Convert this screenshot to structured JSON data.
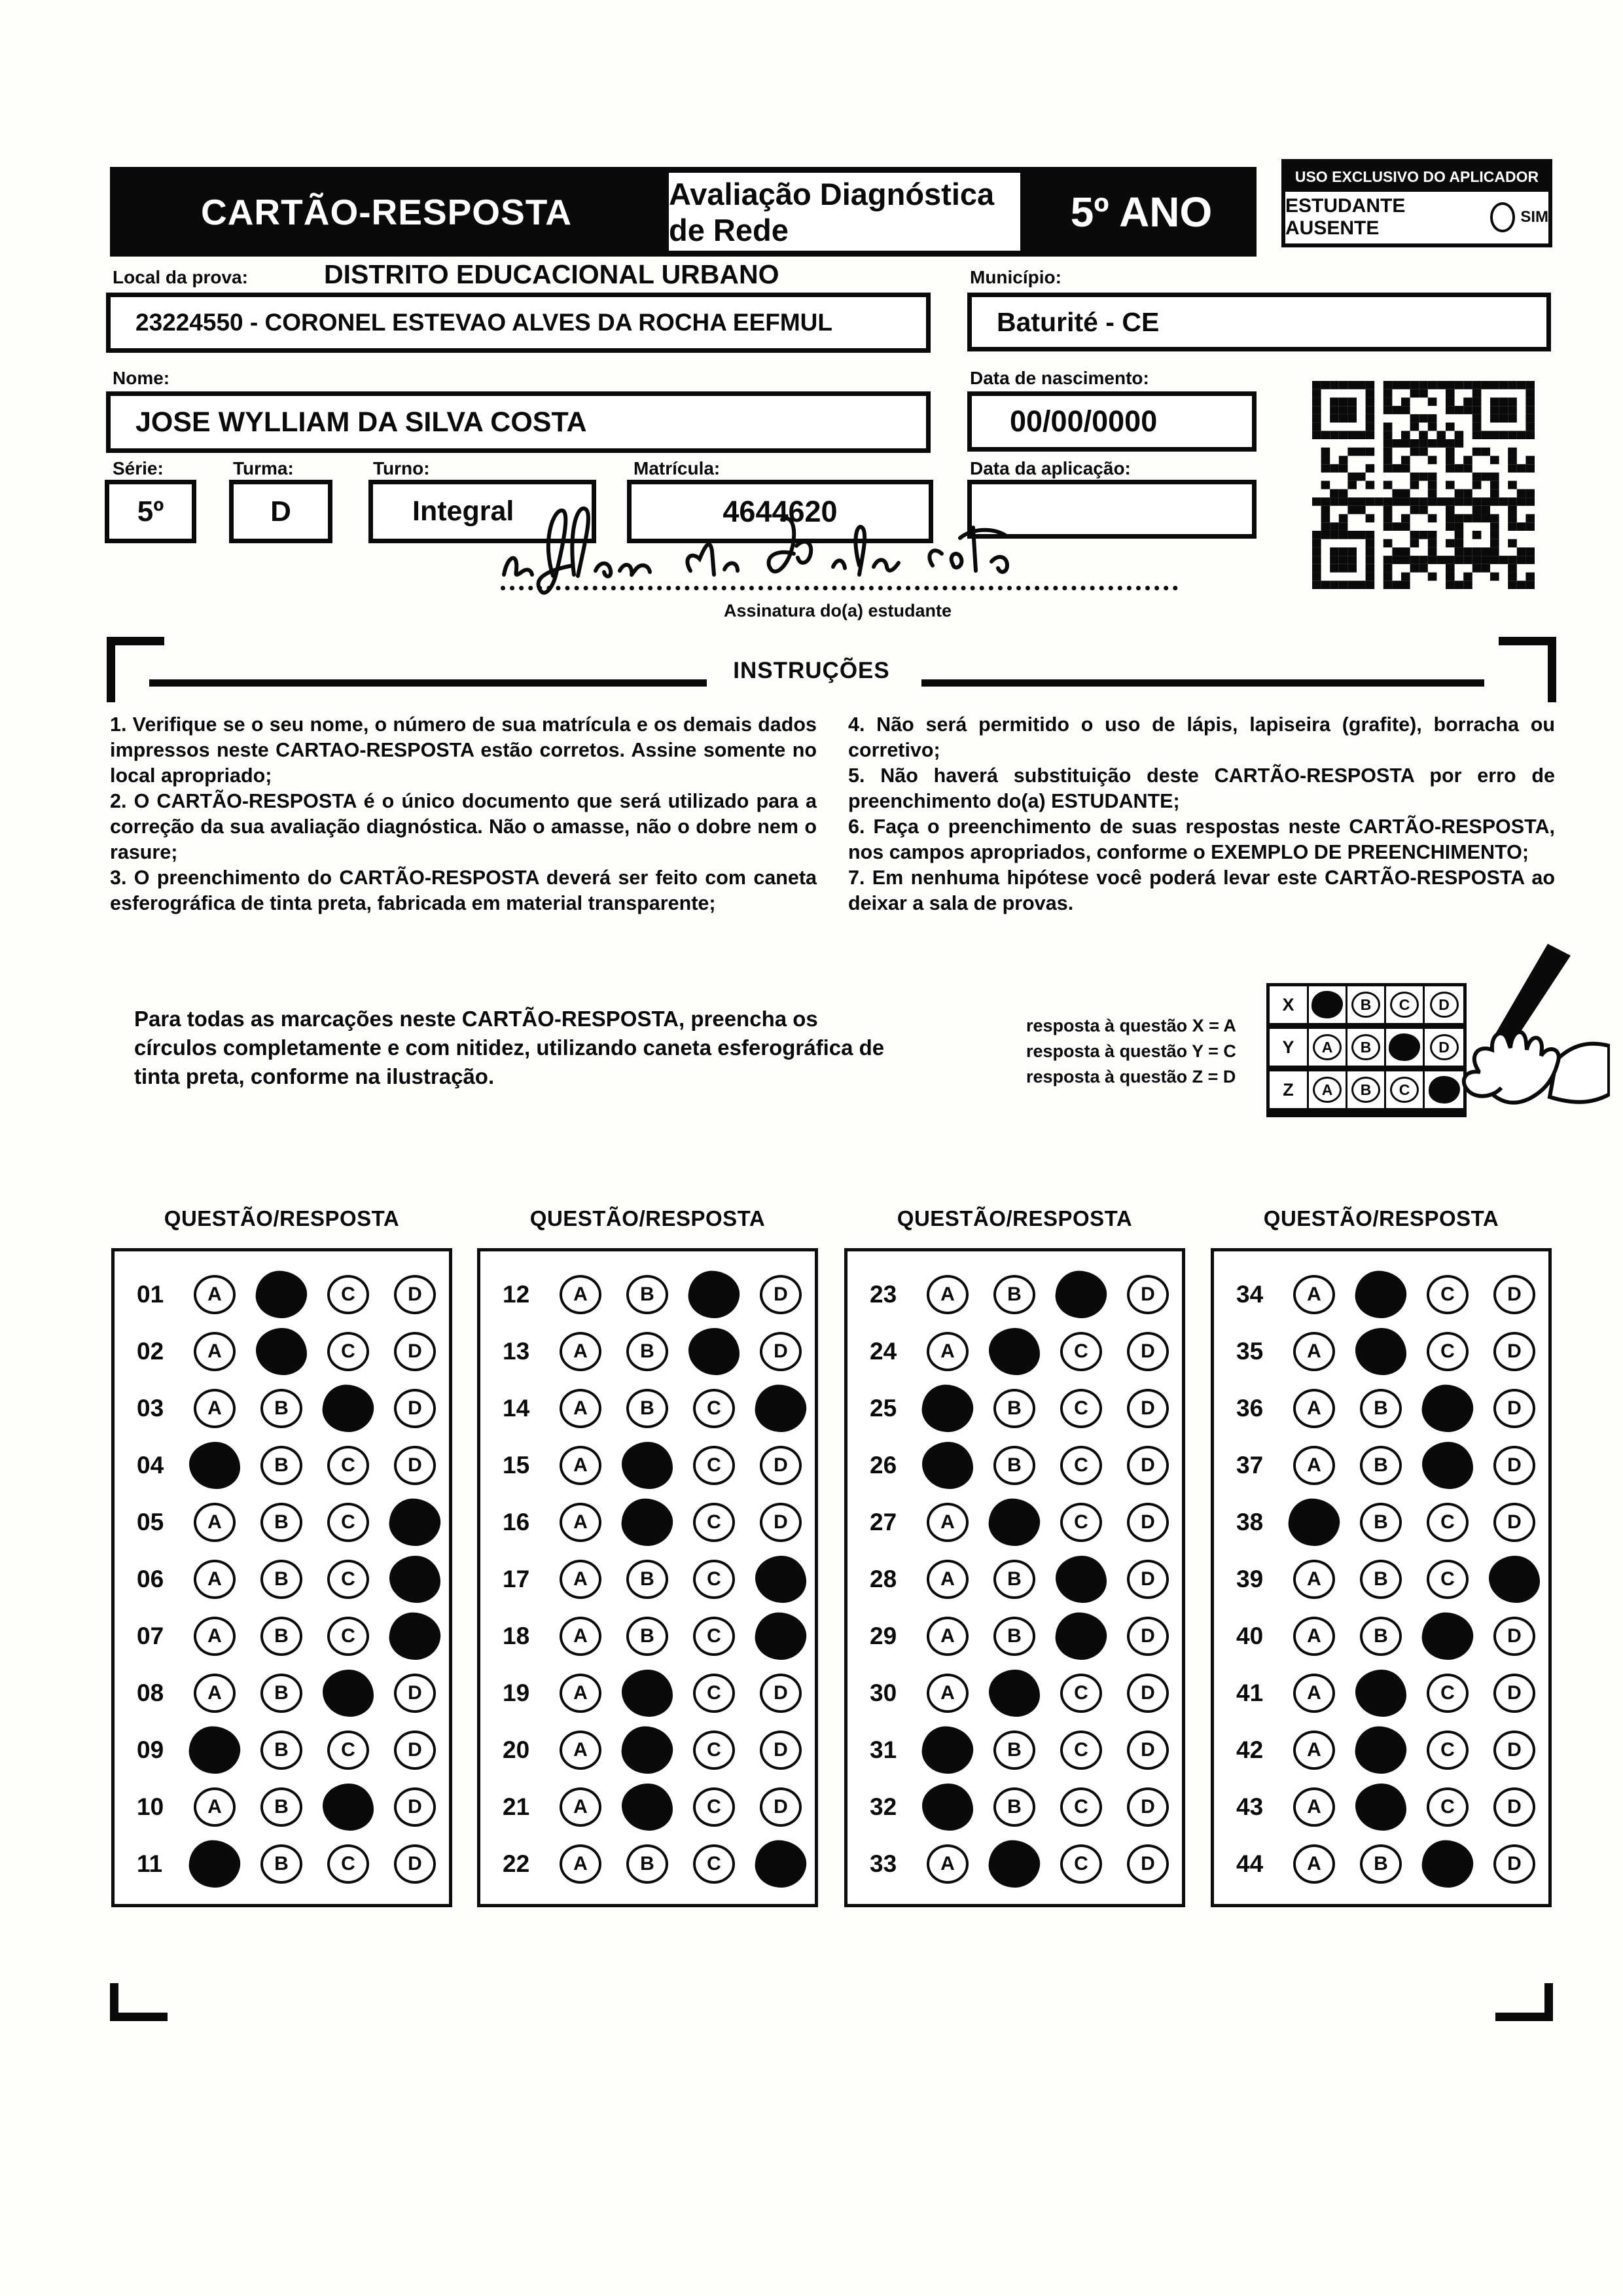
{
  "header": {
    "card_title": "CARTÃO-RESPOSTA",
    "exam_title": "Avaliação Diagnóstica de Rede",
    "grade": "5º ANO",
    "aplicador_title": "USO EXCLUSIVO DO APLICADOR",
    "absent_label": "ESTUDANTE AUSENTE",
    "absent_option": "SIM"
  },
  "form": {
    "local_label": "Local da prova:",
    "local_value": "DISTRITO EDUCACIONAL URBANO",
    "school_value": "23224550 - CORONEL ESTEVAO ALVES DA ROCHA EEFMUL",
    "municipio_label": "Município:",
    "municipio_value": "Baturité - CE",
    "nome_label": "Nome:",
    "nome_value": "JOSE WYLLIAM DA SILVA COSTA",
    "nascimento_label": "Data de nascimento:",
    "nascimento_value": "00/00/0000",
    "serie_label": "Série:",
    "serie_value": "5º",
    "turma_label": "Turma:",
    "turma_value": "D",
    "turno_label": "Turno:",
    "turno_value": "Integral",
    "matricula_label": "Matrícula:",
    "matricula_value": "4644620",
    "aplicacao_label": "Data da aplicação:",
    "aplicacao_value": "",
    "assinatura_caption": "Assinatura do(a) estudante"
  },
  "instructions": {
    "title": "INSTRUÇÕES",
    "left": [
      "1. Verifique se o seu nome, o número de sua matrícula e os demais dados impressos neste CARTAO-RESPOSTA estão corretos. Assine somente no local apropriado;",
      "2. O CARTÃO-RESPOSTA é o único documento que será utilizado para a correção da sua avaliação diagnóstica. Não o amasse, não o dobre nem o rasure;",
      "3. O preenchimento do CARTÃO-RESPOSTA deverá ser feito com caneta esferográfica de tinta preta, fabricada em material transparente;"
    ],
    "right": [
      "4. Não será permitido o uso de lápis, lapiseira (grafite), borracha ou corretivo;",
      "5. Não haverá substituição deste CARTÃO-RESPOSTA por erro de preenchimento do(a) ESTUDANTE;",
      "6. Faça o preenchimento de suas respostas neste CARTÃO-RESPOSTA, nos campos apropriados, conforme o EXEMPLO DE PREENCHIMENTO;",
      "7. Em nenhuma hipótese você poderá levar este CARTÃO-RESPOSTA ao deixar a sala de provas."
    ]
  },
  "example": {
    "paragraph": "Para todas as marcações neste CARTÃO-RESPOSTA, preencha os círculos completamente e com nitidez, utilizando caneta esferográfica de tinta preta, conforme na ilustração.",
    "legend": [
      "resposta à questão X = A",
      "resposta à questão Y = C",
      "resposta à questão Z = D"
    ],
    "options": [
      "A",
      "B",
      "C",
      "D"
    ],
    "rows": [
      {
        "label": "X",
        "filled": "A"
      },
      {
        "label": "Y",
        "filled": "C"
      },
      {
        "label": "Z",
        "filled": "D"
      }
    ]
  },
  "answers": {
    "column_header": "QUESTÃO/RESPOSTA",
    "options": [
      "A",
      "B",
      "C",
      "D"
    ],
    "columns": [
      {
        "questions": [
          {
            "n": "01",
            "marked": "B"
          },
          {
            "n": "02",
            "marked": "B"
          },
          {
            "n": "03",
            "marked": "C"
          },
          {
            "n": "04",
            "marked": "A"
          },
          {
            "n": "05",
            "marked": "D"
          },
          {
            "n": "06",
            "marked": "D"
          },
          {
            "n": "07",
            "marked": "D"
          },
          {
            "n": "08",
            "marked": "C"
          },
          {
            "n": "09",
            "marked": "A"
          },
          {
            "n": "10",
            "marked": "C"
          },
          {
            "n": "11",
            "marked": "A"
          }
        ]
      },
      {
        "questions": [
          {
            "n": "12",
            "marked": "C"
          },
          {
            "n": "13",
            "marked": "C"
          },
          {
            "n": "14",
            "marked": "D"
          },
          {
            "n": "15",
            "marked": "B"
          },
          {
            "n": "16",
            "marked": "B"
          },
          {
            "n": "17",
            "marked": "D"
          },
          {
            "n": "18",
            "marked": "D"
          },
          {
            "n": "19",
            "marked": "B"
          },
          {
            "n": "20",
            "marked": "B"
          },
          {
            "n": "21",
            "marked": "B"
          },
          {
            "n": "22",
            "marked": "D"
          }
        ]
      },
      {
        "questions": [
          {
            "n": "23",
            "marked": "C"
          },
          {
            "n": "24",
            "marked": "B"
          },
          {
            "n": "25",
            "marked": "A"
          },
          {
            "n": "26",
            "marked": "A"
          },
          {
            "n": "27",
            "marked": "B"
          },
          {
            "n": "28",
            "marked": "C"
          },
          {
            "n": "29",
            "marked": "C"
          },
          {
            "n": "30",
            "marked": "B"
          },
          {
            "n": "31",
            "marked": "A"
          },
          {
            "n": "32",
            "marked": "A"
          },
          {
            "n": "33",
            "marked": "B"
          }
        ]
      },
      {
        "questions": [
          {
            "n": "34",
            "marked": "B"
          },
          {
            "n": "35",
            "marked": "B"
          },
          {
            "n": "36",
            "marked": "C"
          },
          {
            "n": "37",
            "marked": "C"
          },
          {
            "n": "38",
            "marked": "A"
          },
          {
            "n": "39",
            "marked": "D"
          },
          {
            "n": "40",
            "marked": "C"
          },
          {
            "n": "41",
            "marked": "B"
          },
          {
            "n": "42",
            "marked": "B"
          },
          {
            "n": "43",
            "marked": "B"
          },
          {
            "n": "44",
            "marked": "C"
          }
        ]
      }
    ]
  },
  "colors": {
    "ink": "#0a0a0a",
    "paper": "#fdfdfb"
  }
}
